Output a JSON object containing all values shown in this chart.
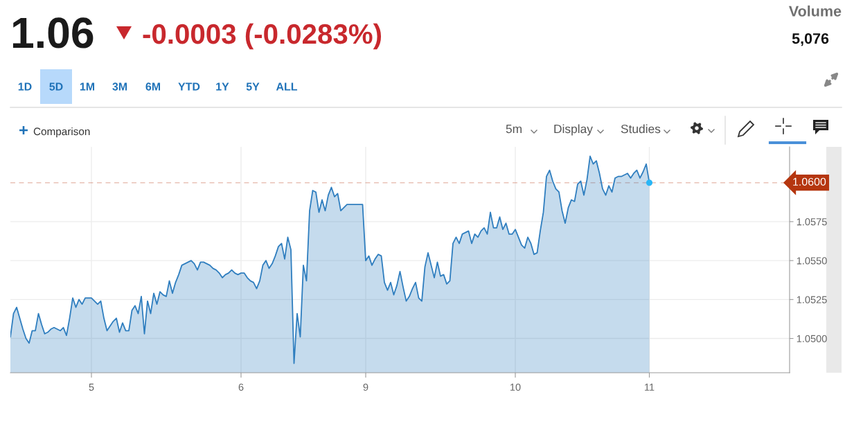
{
  "chart_data": {
    "type": "area",
    "title": "1.06",
    "subtitle": "-0.0003 (-0.0283%)",
    "annotations": [
      "Volume",
      "5,076",
      "1D",
      "5D",
      "1M",
      "3M",
      "6M",
      "YTD",
      "1Y",
      "5Y",
      "ALL",
      "Comparison",
      "5m",
      "Display",
      "Studies"
    ],
    "categories": [
      null,
      null,
      null,
      null,
      null,
      null,
      null,
      null,
      null,
      null,
      null,
      null,
      null,
      null,
      null,
      null,
      null,
      null,
      null,
      null,
      null,
      null,
      null,
      null,
      null,
      null,
      "5",
      null,
      null,
      null,
      null,
      null,
      null,
      null,
      null,
      null,
      null,
      null,
      null,
      null,
      null,
      null,
      null,
      null,
      null,
      null,
      null,
      null,
      null,
      null,
      null,
      null,
      null,
      null,
      null,
      null,
      null,
      null,
      null,
      null,
      null,
      null,
      null,
      null,
      null,
      null,
      null,
      null,
      null,
      null,
      null,
      null,
      null,
      null,
      "6",
      null,
      null,
      null,
      null,
      null,
      null,
      null,
      null,
      null,
      null,
      null,
      null,
      null,
      null,
      null,
      null,
      null,
      null,
      null,
      null,
      null,
      null,
      null,
      null,
      null,
      null,
      null,
      null,
      null,
      null,
      null,
      null,
      null,
      null,
      null,
      null,
      null,
      null,
      null,
      "9",
      null,
      null,
      null,
      null,
      null,
      null,
      null,
      null,
      null,
      null,
      null,
      null,
      null,
      null,
      null,
      null,
      null,
      null,
      null,
      null,
      null,
      null,
      null,
      null,
      null,
      null,
      null,
      null,
      null,
      null,
      null,
      null,
      null,
      null,
      null,
      null,
      null,
      null,
      null,
      null,
      null,
      null,
      null,
      null,
      null,
      null,
      null,
      "10",
      null,
      null,
      null,
      null,
      null,
      null,
      null,
      null,
      null,
      null,
      null,
      null,
      null,
      null,
      null,
      null,
      null,
      null,
      null,
      null,
      null,
      null,
      null,
      null,
      null,
      null,
      null,
      null,
      null,
      null,
      null,
      null,
      null,
      null,
      null,
      null,
      null,
      null,
      null,
      null,
      null,
      null,
      "11",
      null,
      null,
      null,
      null,
      null,
      null,
      null,
      null,
      null,
      null,
      null,
      null,
      null,
      null,
      null,
      null,
      null,
      null,
      null,
      null,
      null,
      null,
      null,
      null,
      null,
      null,
      null,
      null,
      null,
      null,
      null,
      null,
      null,
      null,
      null,
      null,
      null,
      null,
      null,
      null,
      null,
      null,
      null,
      null,
      null
    ],
    "ylim": [
      1.0478,
      1.0623
    ],
    "yticks": [
      {
        "value": 1.05,
        "label": "1.0500"
      },
      1.0525,
      {
        "value": 1.055,
        "label": "1.0550"
      },
      1.0575
    ],
    "grid": true,
    "ref_lines": [
      {
        "axis": "y",
        "value": 1.06,
        "label": "1.0600",
        "color": "#b5360f",
        "line_style": "dashed"
      }
    ],
    "series": [
      {
        "color": "#2f7ebf",
        "values": [
          1.0501,
          1.0516,
          1.052,
          1.0513,
          1.0506,
          1.05,
          1.0497,
          1.0505,
          1.0505,
          1.0516,
          1.0509,
          1.0503,
          1.0504,
          1.0506,
          1.0507,
          1.0506,
          1.0505,
          1.0507,
          1.0502,
          1.0513,
          1.0526,
          1.052,
          1.0525,
          1.0522,
          1.0526,
          1.0526,
          1.0526,
          1.0524,
          1.0522,
          1.0524,
          1.0513,
          1.0505,
          1.0508,
          1.0511,
          1.0513,
          1.0504,
          1.051,
          1.0505,
          1.0505,
          1.0518,
          1.0521,
          1.0516,
          1.0527,
          1.0503,
          1.0524,
          1.0516,
          1.0529,
          1.0522,
          1.053,
          1.0528,
          1.0527,
          1.0537,
          1.0529,
          1.0536,
          1.0541,
          1.0547,
          1.0548,
          1.0549,
          1.055,
          1.0548,
          1.0544,
          1.0549,
          1.0549,
          1.0548,
          1.0547,
          1.0545,
          1.0544,
          1.0542,
          1.0539,
          1.0541,
          1.0542,
          1.0544,
          1.0542,
          1.0541,
          1.0542,
          1.0542,
          1.0539,
          1.0537,
          1.0536,
          1.0532,
          1.0537,
          1.0547,
          1.055,
          1.0545,
          1.0548,
          1.0553,
          1.0559,
          1.0561,
          1.0551,
          1.0565,
          1.0557,
          1.0484,
          1.0516,
          1.0501,
          1.0547,
          1.0537,
          1.0582,
          1.0595,
          1.0594,
          1.0581,
          1.0589,
          1.0582,
          1.0592,
          1.0597,
          1.0591,
          1.0593,
          1.0582,
          1.0584,
          1.0586,
          1.0586,
          1.0586,
          1.0586,
          1.0586,
          1.0586,
          1.055,
          1.0553,
          1.0547,
          1.0551,
          1.0554,
          1.0553,
          1.0536,
          1.0531,
          1.0536,
          1.0528,
          1.0534,
          1.0543,
          1.0533,
          1.0524,
          1.0527,
          1.0532,
          1.0536,
          1.0526,
          1.0524,
          1.0546,
          1.0555,
          1.0547,
          1.0539,
          1.0549,
          1.054,
          1.0541,
          1.0535,
          1.0537,
          1.0561,
          1.0565,
          1.0561,
          1.0567,
          1.0568,
          1.0569,
          1.0561,
          1.0567,
          1.0565,
          1.0569,
          1.0571,
          1.0567,
          1.0581,
          1.0571,
          1.0571,
          1.0578,
          1.057,
          1.0574,
          1.0567,
          1.0567,
          1.057,
          1.0565,
          1.056,
          1.0558,
          1.0565,
          1.0561,
          1.0554,
          1.0555,
          1.0569,
          1.0581,
          1.0604,
          1.0608,
          1.0601,
          1.0596,
          1.0594,
          1.0582,
          1.0574,
          1.0584,
          1.0589,
          1.0588,
          1.0599,
          1.0601,
          1.0592,
          1.0602,
          1.0617,
          1.0612,
          1.0614,
          1.0606,
          1.0596,
          1.0592,
          1.0598,
          1.0594,
          1.0603,
          1.0604,
          1.0604,
          1.0605,
          1.0606,
          1.0603,
          1.0606,
          1.0608,
          1.0603,
          1.0607,
          1.0612,
          1.06,
          null,
          null,
          null,
          null,
          null,
          null,
          null,
          null,
          null,
          null,
          null,
          null,
          null,
          null,
          null,
          null,
          null,
          null,
          null,
          null,
          null,
          null,
          null,
          null,
          null,
          null,
          null,
          null,
          null,
          null,
          null,
          null,
          null,
          null,
          null,
          null,
          null,
          null,
          null,
          null,
          null,
          null,
          null,
          null,
          null
        ]
      },
      {
        "type": "scatter",
        "color": "#29b6f6",
        "marker": "circle",
        "values": [
          null,
          null,
          null,
          null,
          null,
          null,
          null,
          null,
          null,
          null,
          null,
          null,
          null,
          null,
          null,
          null,
          null,
          null,
          null,
          null,
          null,
          null,
          null,
          null,
          null,
          null,
          null,
          null,
          null,
          null,
          null,
          null,
          null,
          null,
          null,
          null,
          null,
          null,
          null,
          null,
          null,
          null,
          null,
          null,
          null,
          null,
          null,
          null,
          null,
          null,
          null,
          null,
          null,
          null,
          null,
          null,
          null,
          null,
          null,
          null,
          null,
          null,
          null,
          null,
          null,
          null,
          null,
          null,
          null,
          null,
          null,
          null,
          null,
          null,
          null,
          null,
          null,
          null,
          null,
          null,
          null,
          null,
          null,
          null,
          null,
          null,
          null,
          null,
          null,
          null,
          null,
          null,
          null,
          null,
          null,
          null,
          null,
          null,
          null,
          null,
          null,
          null,
          null,
          null,
          null,
          null,
          null,
          null,
          null,
          null,
          null,
          null,
          null,
          null,
          null,
          null,
          null,
          null,
          null,
          null,
          null,
          null,
          null,
          null,
          null,
          null,
          null,
          null,
          null,
          null,
          null,
          null,
          null,
          null,
          null,
          null,
          null,
          null,
          null,
          null,
          null,
          null,
          null,
          null,
          null,
          null,
          null,
          null,
          null,
          null,
          null,
          null,
          null,
          null,
          null,
          null,
          null,
          null,
          null,
          null,
          null,
          null,
          null,
          null,
          null,
          null,
          null,
          null,
          null,
          null,
          null,
          null,
          null,
          null,
          null,
          null,
          null,
          null,
          null,
          null,
          null,
          null,
          null,
          null,
          null,
          null,
          null,
          null,
          null,
          null,
          null,
          null,
          null,
          null,
          null,
          null,
          null,
          null,
          null,
          null,
          null,
          null,
          null,
          null,
          null,
          1.06,
          null,
          null,
          null,
          null,
          null,
          null,
          null,
          null,
          null,
          null,
          null,
          null,
          null,
          null,
          null,
          null,
          null,
          null,
          null,
          null,
          null,
          null,
          null,
          null,
          null,
          null,
          null,
          null,
          null,
          null,
          null,
          null,
          null,
          null,
          null,
          null,
          null,
          null,
          null,
          null,
          null,
          null,
          null,
          null,
          null
        ]
      }
    ]
  }
}
